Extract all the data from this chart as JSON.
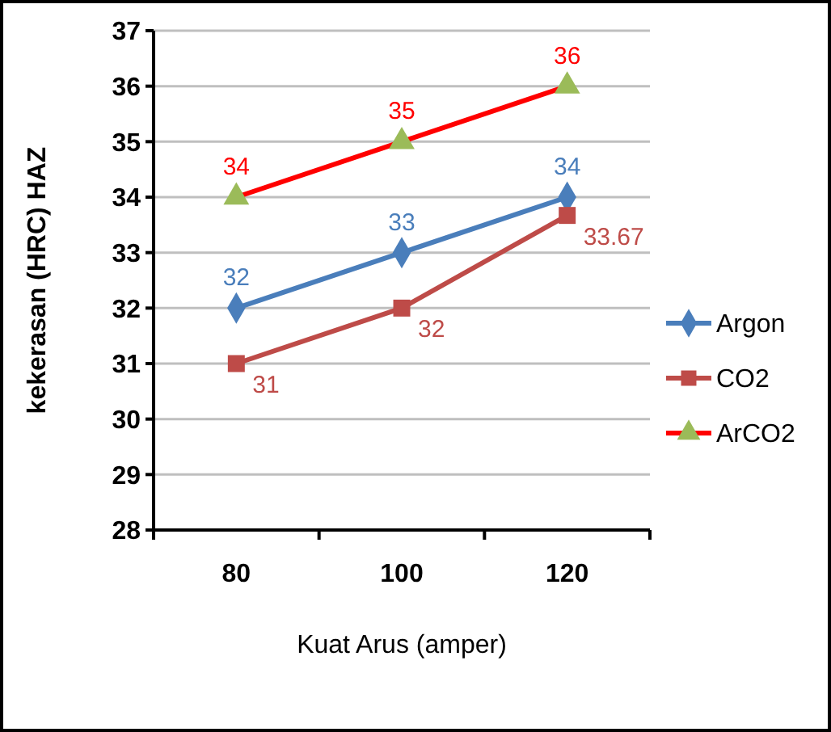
{
  "chart_data": {
    "type": "line",
    "xlabel": "Kuat Arus (amper)",
    "ylabel": "kekerasan (HRC) HAZ",
    "categories": [
      "80",
      "100",
      "120"
    ],
    "ylim": [
      28,
      37
    ],
    "yticks": [
      28,
      29,
      30,
      31,
      32,
      33,
      34,
      35,
      36,
      37
    ],
    "grid": "y",
    "legend": "right",
    "data_labels": true,
    "series": [
      {
        "name": "Argon",
        "color": "#4a7ebb",
        "marker": "diamond",
        "values": [
          32,
          33,
          34
        ]
      },
      {
        "name": "CO2",
        "color": "#be4b48",
        "marker": "square",
        "values": [
          31,
          32,
          33.67
        ]
      },
      {
        "name": "ArCO2",
        "color": "#ff0000",
        "colors": [
          "#9bbb59",
          "#9bbb59",
          "#9bbb59"
        ],
        "marker": "triangle",
        "values": [
          34,
          35,
          36
        ]
      }
    ]
  }
}
